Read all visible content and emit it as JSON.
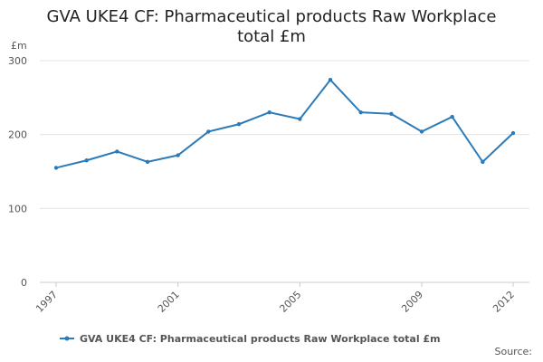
{
  "chart_data": {
    "type": "line",
    "title": "GVA UKE4 CF: Pharmaceutical products Raw Workplace total £m",
    "y_unit": "£m",
    "source": "Source:",
    "x": [
      1997,
      1998,
      1999,
      2000,
      2001,
      2002,
      2003,
      2004,
      2005,
      2006,
      2007,
      2008,
      2009,
      2010,
      2011,
      2012
    ],
    "series": [
      {
        "name": "GVA UKE4 CF: Pharmaceutical products Raw Workplace total £m",
        "color": "#2b7bba",
        "values": [
          155,
          165,
          177,
          163,
          172,
          204,
          214,
          230,
          221,
          274,
          230,
          228,
          204,
          224,
          163,
          202
        ]
      }
    ],
    "xlim": [
      1997,
      2012
    ],
    "xticks": [
      1997,
      2001,
      2005,
      2009,
      2012
    ],
    "ylim": [
      0,
      300
    ],
    "yticks": [
      0,
      100,
      200,
      300
    ],
    "grid": true,
    "legend": "bottom"
  }
}
